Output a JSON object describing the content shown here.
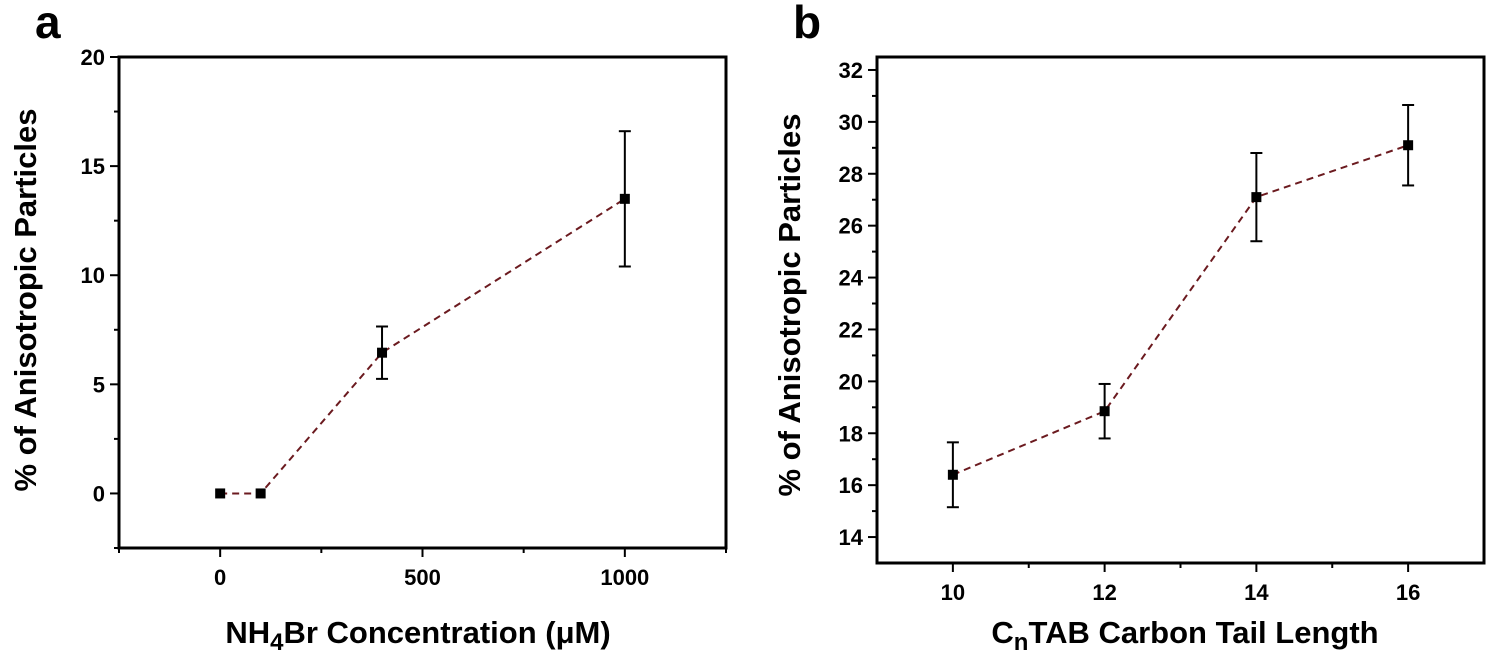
{
  "chart_data": [
    {
      "panel": "a",
      "type": "line",
      "xlabel": "NH4Br Concentration (μM)",
      "xlabel_parts": {
        "pre": "NH",
        "sub": "4",
        "post": "Br Concentration (μM)"
      },
      "ylabel": "% of Anisotropic Particles",
      "xlim": [
        -250,
        1250
      ],
      "ylim": [
        -2.5,
        20
      ],
      "xticks": [
        0,
        500,
        1000
      ],
      "xminor": [
        -250,
        250,
        750,
        1250
      ],
      "yticks": [
        0,
        5,
        10,
        15,
        20
      ],
      "yminor": [
        -2.5,
        2.5,
        7.5,
        12.5,
        17.5
      ],
      "series": [
        {
          "color": "#6b1a1f",
          "points": [
            {
              "x": 0,
              "y": 0,
              "err": 0
            },
            {
              "x": 100,
              "y": 0,
              "err": 0
            },
            {
              "x": 400,
              "y": 6.45,
              "err": 1.2
            },
            {
              "x": 1000,
              "y": 13.5,
              "err": 3.1
            }
          ]
        }
      ]
    },
    {
      "panel": "b",
      "type": "line",
      "xlabel": "CnTAB Carbon Tail Length",
      "xlabel_parts": {
        "pre": "C",
        "sub": "n",
        "post": "TAB Carbon Tail Length"
      },
      "ylabel": "% of Anisotropic Particles",
      "xlim": [
        9,
        17
      ],
      "ylim": [
        13,
        32.5
      ],
      "xticks": [
        10,
        12,
        14,
        16
      ],
      "xminor": [
        11,
        13,
        15
      ],
      "yticks": [
        14,
        16,
        18,
        20,
        22,
        24,
        26,
        28,
        30,
        32
      ],
      "yminor": [
        15,
        17,
        19,
        21,
        23,
        25,
        27,
        29,
        31
      ],
      "series": [
        {
          "color": "#6b1a1f",
          "points": [
            {
              "x": 10,
              "y": 16.4,
              "err": 1.25
            },
            {
              "x": 12,
              "y": 18.85,
              "err": 1.05
            },
            {
              "x": 14,
              "y": 27.1,
              "err": 1.7
            },
            {
              "x": 16,
              "y": 29.1,
              "err": 1.55
            }
          ]
        }
      ]
    }
  ]
}
